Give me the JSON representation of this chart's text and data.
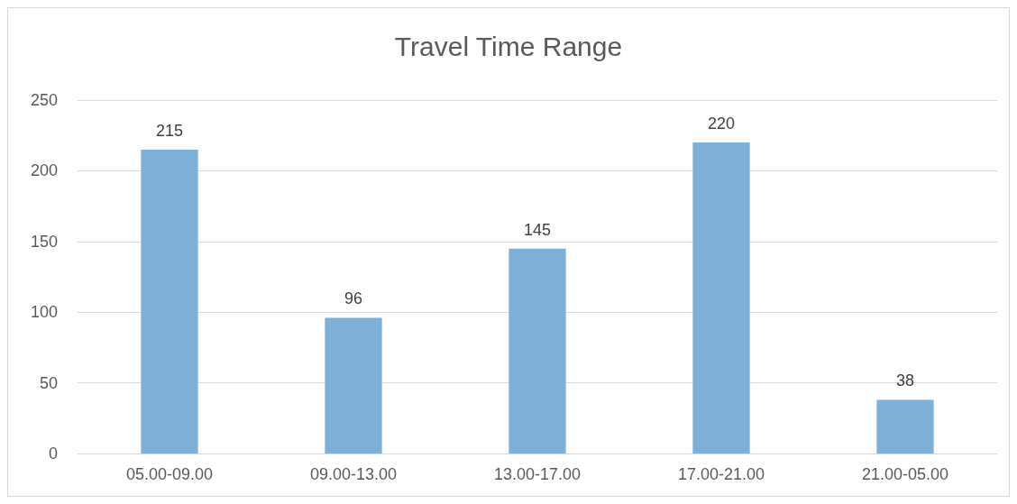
{
  "chart_data": {
    "type": "bar",
    "title": "Travel Time Range",
    "categories": [
      "05.00-09.00",
      "09.00-13.00",
      "13.00-17.00",
      "17.00-21.00",
      "21.00-05.00"
    ],
    "values": [
      215,
      96,
      145,
      220,
      38
    ],
    "color": "#7eafd6",
    "ylim": [
      0,
      250
    ],
    "yticks": [
      0,
      50,
      100,
      150,
      200,
      250
    ],
    "grid": "y",
    "data_labels": true
  }
}
